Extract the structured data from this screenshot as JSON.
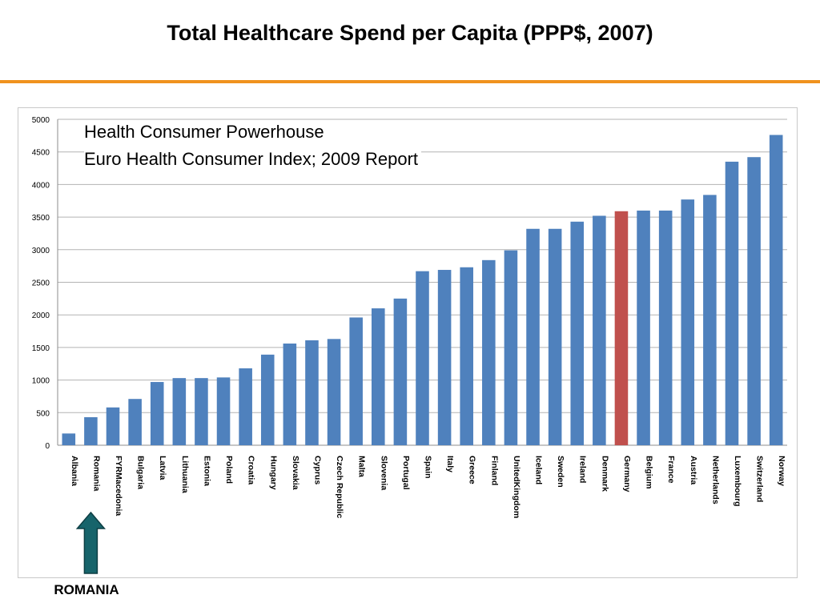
{
  "slide": {
    "title": "Total Healthcare Spend per Capita (PPP$, 2007)",
    "accent_color": "#f0921e"
  },
  "annotation": {
    "line1": "Health Consumer Powerhouse",
    "line2": "Euro Health Consumer Index; 2009 Report"
  },
  "callout": {
    "label": "ROMANIA",
    "target_category": "Romania",
    "arrow_color": "#17646b",
    "arrow_icon": "up-arrow-icon"
  },
  "chart_data": {
    "type": "bar",
    "title": "",
    "xlabel": "",
    "ylabel": "",
    "ylim": [
      0,
      5000
    ],
    "yticks": [
      0,
      500,
      1000,
      1500,
      2000,
      2500,
      3000,
      3500,
      4000,
      4500,
      5000
    ],
    "grid": true,
    "bar_color": "#4f81bd",
    "highlight_color": "#c0504d",
    "highlight_category": "Germany",
    "categories": [
      "Albania",
      "Romania",
      "FYRMacedonia",
      "Bulgaria",
      "Latvia",
      "Lithuania",
      "Estonia",
      "Poland",
      "Croatia",
      "Hungary",
      "Slovakia",
      "Cyprus",
      "Czech Republic",
      "Malta",
      "Slovenia",
      "Portugal",
      "Spain",
      "Italy",
      "Greece",
      "Finland",
      "UnitedKingdom",
      "Iceland",
      "Sweden",
      "Ireland",
      "Denmark",
      "Germany",
      "Belgium",
      "France",
      "Austria",
      "Netherlands",
      "Luxembourg",
      "Switzerland",
      "Norway"
    ],
    "values": [
      180,
      430,
      580,
      710,
      970,
      1030,
      1030,
      1040,
      1180,
      1390,
      1560,
      1610,
      1630,
      1960,
      2100,
      2250,
      2670,
      2690,
      2730,
      2840,
      2990,
      3320,
      3320,
      3430,
      3520,
      3590,
      3600,
      3600,
      3770,
      3840,
      4350,
      4420,
      4760
    ]
  }
}
